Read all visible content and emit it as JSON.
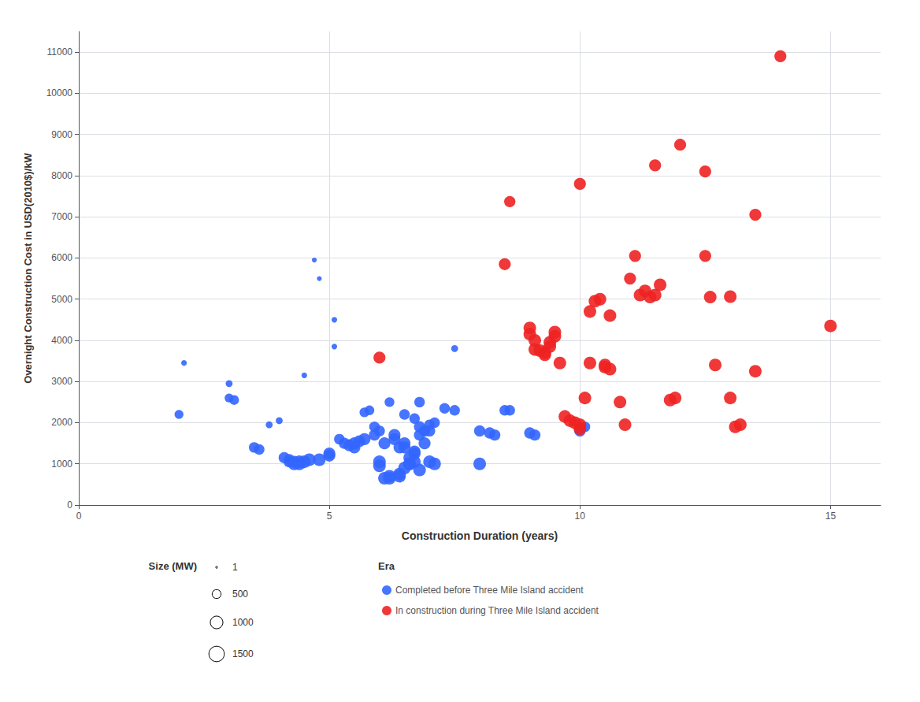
{
  "chart_data": {
    "type": "scatter",
    "xlabel": "Construction Duration (years)",
    "ylabel": "Overnight Construction Cost in USD(2010$)/kW",
    "xlim": [
      0,
      16
    ],
    "ylim": [
      0,
      11500
    ],
    "xticks": [
      0,
      5,
      10,
      15
    ],
    "yticks": [
      0,
      1000,
      2000,
      3000,
      4000,
      5000,
      6000,
      7000,
      8000,
      9000,
      10000,
      11000
    ],
    "grid": true,
    "legend": "bottom",
    "legend_title": "Era",
    "size_title": "Size (MW)",
    "size_values": [
      1,
      500,
      1000,
      1500
    ],
    "series": [
      {
        "name": "Completed before Three Mile Island accident",
        "color": "#3366FF",
        "x": [
          2.0,
          2.1,
          3.0,
          3.0,
          3.1,
          3.5,
          3.6,
          3.8,
          4.0,
          4.1,
          4.2,
          4.2,
          4.3,
          4.3,
          4.4,
          4.4,
          4.5,
          4.5,
          4.6,
          4.7,
          4.8,
          4.8,
          5.0,
          5.0,
          5.1,
          5.1,
          5.2,
          5.3,
          5.4,
          5.5,
          5.5,
          5.6,
          5.7,
          5.7,
          5.8,
          5.9,
          5.9,
          6.0,
          6.0,
          6.0,
          6.1,
          6.1,
          6.2,
          6.2,
          6.2,
          6.3,
          6.3,
          6.4,
          6.4,
          6.4,
          6.5,
          6.5,
          6.5,
          6.5,
          6.6,
          6.6,
          6.6,
          6.7,
          6.7,
          6.7,
          6.7,
          6.8,
          6.8,
          6.8,
          6.8,
          6.9,
          6.9,
          7.0,
          7.0,
          7.0,
          7.1,
          7.1,
          7.3,
          7.5,
          7.5,
          8.0,
          8.0,
          8.2,
          8.3,
          8.5,
          8.6,
          9.0,
          9.1,
          10.0,
          10.1
        ],
        "values": [
          2200,
          3450,
          2950,
          2600,
          2550,
          1400,
          1350,
          1950,
          2050,
          1150,
          1050,
          1100,
          1050,
          1000,
          1000,
          1050,
          1050,
          3150,
          1100,
          5950,
          1100,
          5500,
          1250,
          1200,
          3850,
          4500,
          1600,
          1500,
          1450,
          1400,
          1500,
          1550,
          1600,
          2250,
          2300,
          1700,
          1900,
          950,
          1050,
          1800,
          1500,
          650,
          650,
          700,
          2500,
          1600,
          1700,
          700,
          750,
          1400,
          1400,
          1500,
          900,
          2200,
          1000,
          1000,
          1150,
          1250,
          1300,
          1050,
          2100,
          2500,
          1700,
          1900,
          850,
          1500,
          1800,
          1950,
          1050,
          1800,
          2000,
          1000,
          2350,
          3800,
          2300,
          1800,
          1000,
          1750,
          1700,
          2300,
          2300,
          1750,
          1700,
          1800,
          1900
        ],
        "sizes": [
          500,
          200,
          300,
          500,
          600,
          700,
          700,
          300,
          300,
          800,
          800,
          800,
          900,
          1000,
          1000,
          1000,
          1000,
          200,
          1000,
          150,
          1000,
          150,
          900,
          900,
          200,
          200,
          700,
          800,
          900,
          900,
          900,
          900,
          900,
          600,
          600,
          800,
          700,
          1000,
          1000,
          750,
          900,
          1000,
          1000,
          1000,
          600,
          900,
          900,
          1000,
          1000,
          900,
          900,
          900,
          1000,
          700,
          1000,
          1000,
          950,
          900,
          900,
          950,
          700,
          700,
          800,
          800,
          1000,
          900,
          800,
          700,
          1000,
          800,
          700,
          1000,
          700,
          300,
          700,
          800,
          1000,
          800,
          800,
          700,
          700,
          800,
          800,
          800,
          700
        ]
      },
      {
        "name": "In construction during Three Mile Island accident",
        "color": "#EE2222",
        "x": [
          6.0,
          8.5,
          8.6,
          9.0,
          9.0,
          9.1,
          9.1,
          9.2,
          9.3,
          9.3,
          9.4,
          9.4,
          9.5,
          9.5,
          9.6,
          9.7,
          9.8,
          9.9,
          10.0,
          10.0,
          10.0,
          10.1,
          10.2,
          10.2,
          10.3,
          10.4,
          10.5,
          10.5,
          10.6,
          10.6,
          10.8,
          10.9,
          11.0,
          11.1,
          11.2,
          11.3,
          11.4,
          11.5,
          11.5,
          11.6,
          11.8,
          11.9,
          12.0,
          12.5,
          12.5,
          12.6,
          12.7,
          13.0,
          13.0,
          13.1,
          13.2,
          13.5,
          13.5,
          14.0,
          15.0
        ],
        "values": [
          3580,
          5850,
          7370,
          4150,
          4300,
          3780,
          4000,
          3750,
          3700,
          3650,
          3850,
          3950,
          4100,
          4200,
          3450,
          2150,
          2050,
          2000,
          1850,
          1950,
          7800,
          2600,
          3450,
          4700,
          4950,
          5000,
          3400,
          3350,
          4600,
          3300,
          2500,
          1950,
          5500,
          6050,
          5100,
          5200,
          5050,
          5100,
          8250,
          5350,
          2550,
          2600,
          8750,
          6050,
          8100,
          5050,
          3400,
          5060,
          2600,
          1900,
          1950,
          3250,
          7050,
          10900,
          4350
        ],
        "sizes": [
          900,
          900,
          800,
          1000,
          1000,
          1000,
          1000,
          1000,
          1000,
          1000,
          1000,
          1000,
          1000,
          1000,
          1000,
          1000,
          1000,
          1000,
          1000,
          1000,
          900,
          1000,
          1000,
          1000,
          1000,
          1000,
          1000,
          1000,
          1000,
          1000,
          1000,
          1000,
          900,
          900,
          1000,
          1000,
          1000,
          1000,
          900,
          1000,
          1000,
          1000,
          900,
          900,
          900,
          1000,
          1000,
          1000,
          1000,
          1000,
          1000,
          1000,
          900,
          900,
          1000
        ]
      }
    ]
  }
}
